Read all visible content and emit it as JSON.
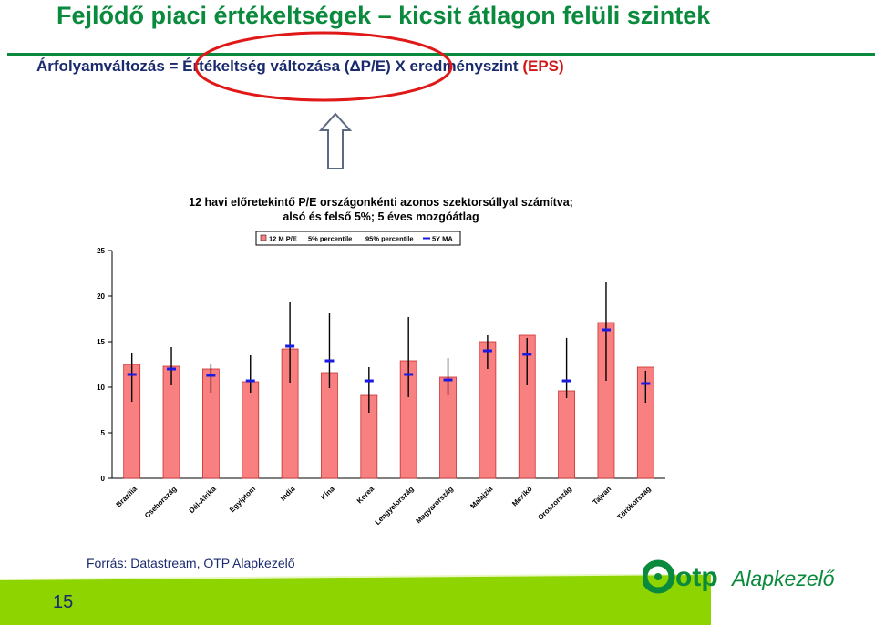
{
  "slide": {
    "title": "Fejlődő piaci értékeltségek – kicsit átlagon felüli szintek",
    "formula_part1": "Árfolyamváltozás = ",
    "formula_part2": "Értékeltség változása (ΔP/E)",
    "formula_part3": " X   eredményszint ",
    "formula_part4": "(EPS)",
    "source": "Forrás: Datastream, OTP Alapkezelő",
    "page_number": "15",
    "logo_text": "otp",
    "logo_sub": "Alapkezelő",
    "colors": {
      "title_green": "#0a8a3c",
      "bar": "#f98080",
      "ma_marker": "#1a1ae0",
      "circle": "#e01818",
      "footer_green": "#8ed400"
    }
  },
  "chart_data": {
    "type": "bar",
    "title_line1": "12 havi előretekintő P/E  országonkénti azonos szektorsúllyal számítva;",
    "title_line2": "alsó és felső 5%; 5 éves mozgóátlag",
    "legend": [
      "12 M P/E",
      "5% percentile",
      "95% percentile",
      "5Y MA"
    ],
    "ylim": [
      0,
      25
    ],
    "yticks": [
      0,
      5,
      10,
      15,
      20,
      25
    ],
    "categories": [
      "Brazília",
      "Csehország",
      "Dél-Afrika",
      "Egyiptom",
      "India",
      "Kína",
      "Korea",
      "Lengyelország",
      "Magyarország",
      "Malajzia",
      "Mexikó",
      "Oroszország",
      "Tajvan",
      "Törökország"
    ],
    "series": [
      {
        "name": "12 M P/E",
        "values": [
          12.5,
          12.3,
          12.0,
          10.6,
          14.2,
          11.6,
          9.1,
          12.9,
          11.1,
          15.0,
          15.7,
          9.6,
          17.1,
          12.2
        ]
      },
      {
        "name": "5% percentile",
        "values": [
          8.4,
          10.2,
          9.4,
          9.4,
          10.5,
          9.9,
          7.2,
          8.9,
          9.1,
          12.0,
          10.2,
          8.8,
          10.7,
          8.3
        ]
      },
      {
        "name": "95% percentile",
        "values": [
          13.8,
          14.4,
          12.6,
          13.5,
          19.4,
          18.2,
          12.2,
          17.7,
          13.2,
          15.7,
          15.4,
          15.4,
          21.6,
          11.8
        ]
      },
      {
        "name": "5Y MA",
        "values": [
          11.4,
          12.0,
          11.3,
          10.7,
          14.5,
          12.9,
          10.7,
          11.4,
          10.8,
          14.0,
          13.6,
          10.7,
          16.3,
          10.4
        ]
      }
    ],
    "grid": false
  }
}
